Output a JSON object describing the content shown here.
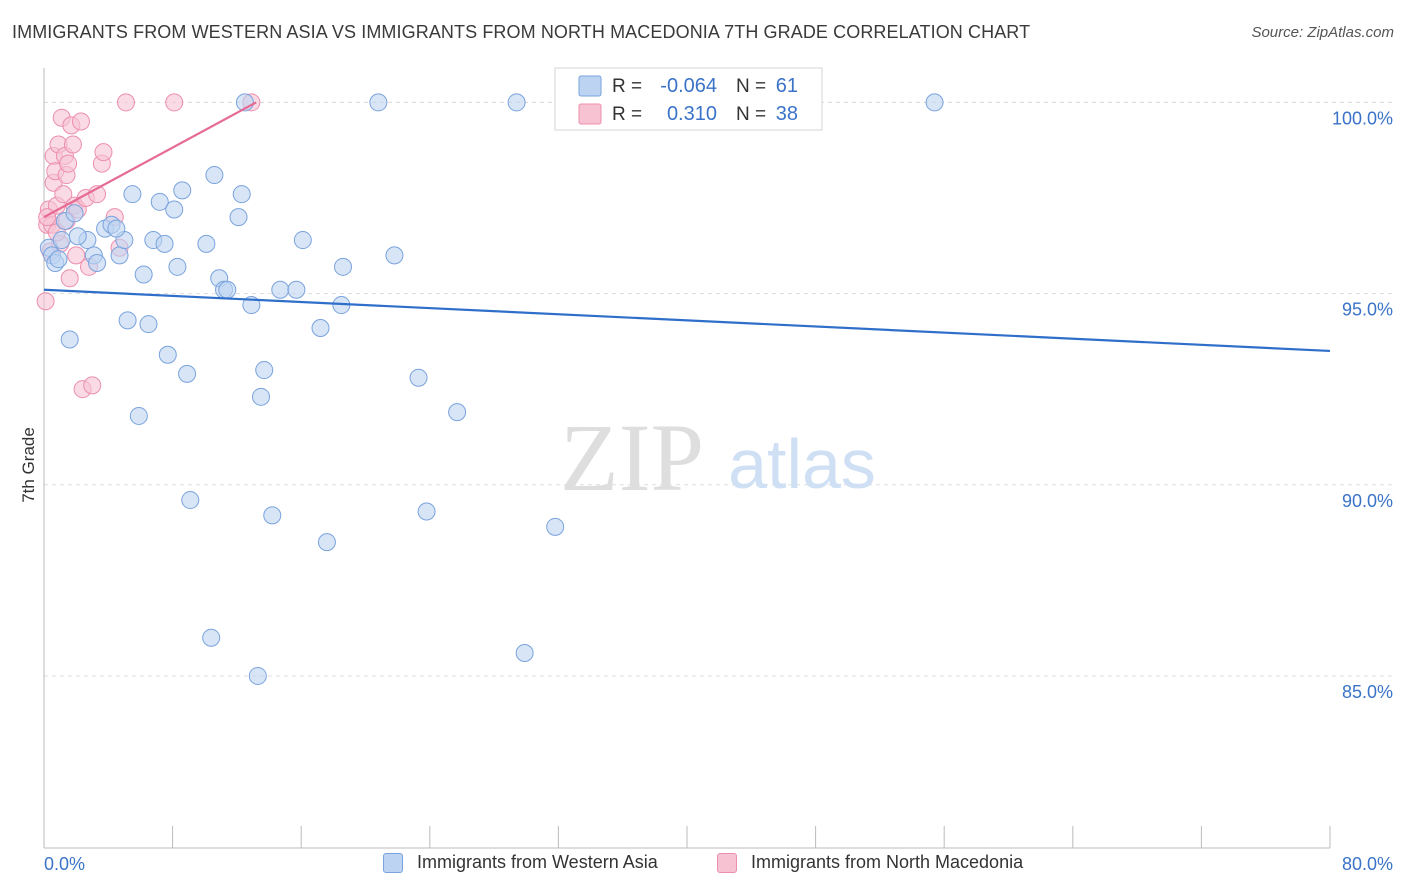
{
  "title": "IMMIGRANTS FROM WESTERN ASIA VS IMMIGRANTS FROM NORTH MACEDONIA 7TH GRADE CORRELATION CHART",
  "source": "Source: ZipAtlas.com",
  "watermark": {
    "zip": "ZIP",
    "atlas": "atlas"
  },
  "colors": {
    "blue_fill": "#bcd3f2",
    "blue_stroke": "#7aa3dd",
    "blue_line": "#2f6fca",
    "pink_fill": "#f7c3d3",
    "pink_stroke": "#ec8fae",
    "pink_line": "#e56b93",
    "axis_label": "#3a73c8",
    "grid": "#dddddd"
  },
  "legend_box": {
    "rows": [
      {
        "r_label": "R =",
        "r_value": "-0.064",
        "n_label": "N =",
        "n_value": "61"
      },
      {
        "r_label": "R =",
        "r_value": "0.310",
        "n_label": "N =",
        "n_value": "38"
      }
    ]
  },
  "chart_data": {
    "type": "scatter",
    "title": "IMMIGRANTS FROM WESTERN ASIA VS IMMIGRANTS FROM NORTH MACEDONIA 7TH GRADE CORRELATION CHART",
    "xlabel": "",
    "ylabel": "7th Grade",
    "xlim": [
      0,
      80
    ],
    "ylim": [
      80.5,
      100.9
    ],
    "x_tick_labels": [
      "0.0%",
      "80.0%"
    ],
    "y_ticks": [
      85,
      90,
      95,
      100
    ],
    "y_tick_labels": [
      "85.0%",
      "90.0%",
      "95.0%",
      "100.0%"
    ],
    "grid": true,
    "legend_position": "bottom",
    "series": [
      {
        "name": "Immigrants from Western Asia",
        "color": "#bcd3f2",
        "trend": {
          "x": [
            0,
            80
          ],
          "y": [
            95.1,
            93.5
          ]
        },
        "points": [
          [
            0.3,
            96.2
          ],
          [
            0.5,
            96.0
          ],
          [
            0.7,
            95.8
          ],
          [
            1.1,
            96.4
          ],
          [
            1.3,
            96.9
          ],
          [
            1.9,
            97.1
          ],
          [
            2.7,
            96.4
          ],
          [
            3.1,
            96.0
          ],
          [
            3.3,
            95.8
          ],
          [
            3.8,
            96.7
          ],
          [
            4.2,
            96.8
          ],
          [
            4.7,
            96.0
          ],
          [
            5.0,
            96.4
          ],
          [
            5.5,
            97.6
          ],
          [
            6.2,
            95.5
          ],
          [
            6.5,
            94.2
          ],
          [
            6.8,
            96.4
          ],
          [
            7.2,
            97.4
          ],
          [
            7.5,
            96.3
          ],
          [
            7.7,
            93.4
          ],
          [
            8.1,
            97.2
          ],
          [
            8.3,
            95.7
          ],
          [
            8.6,
            97.7
          ],
          [
            8.9,
            92.9
          ],
          [
            9.1,
            89.6
          ],
          [
            10.1,
            96.3
          ],
          [
            10.4,
            86.0
          ],
          [
            10.6,
            98.1
          ],
          [
            10.9,
            95.4
          ],
          [
            11.2,
            95.1
          ],
          [
            11.4,
            95.1
          ],
          [
            12.1,
            97.0
          ],
          [
            12.3,
            97.6
          ],
          [
            12.5,
            100.0
          ],
          [
            12.9,
            94.7
          ],
          [
            13.3,
            85.0
          ],
          [
            13.5,
            92.3
          ],
          [
            13.7,
            93.0
          ],
          [
            14.2,
            89.2
          ],
          [
            14.7,
            95.1
          ],
          [
            15.7,
            95.1
          ],
          [
            16.1,
            96.4
          ],
          [
            17.2,
            94.1
          ],
          [
            17.6,
            88.5
          ],
          [
            18.5,
            94.7
          ],
          [
            18.6,
            95.7
          ],
          [
            20.8,
            100.0
          ],
          [
            21.8,
            96.0
          ],
          [
            23.3,
            92.8
          ],
          [
            23.8,
            89.3
          ],
          [
            25.7,
            91.9
          ],
          [
            29.4,
            100.0
          ],
          [
            29.9,
            85.6
          ],
          [
            31.8,
            88.9
          ],
          [
            55.4,
            100.0
          ],
          [
            1.6,
            93.8
          ],
          [
            5.2,
            94.3
          ],
          [
            5.9,
            91.8
          ],
          [
            2.1,
            96.5
          ],
          [
            0.9,
            95.9
          ],
          [
            4.5,
            96.7
          ]
        ]
      },
      {
        "name": "Immigrants from North Macedonia",
        "color": "#f7c3d3",
        "trend": {
          "x": [
            0,
            13.2
          ],
          "y": [
            97.0,
            100.0
          ]
        },
        "points": [
          [
            0.1,
            94.8
          ],
          [
            0.2,
            96.8
          ],
          [
            0.3,
            97.2
          ],
          [
            0.4,
            96.1
          ],
          [
            0.5,
            96.8
          ],
          [
            0.6,
            97.9
          ],
          [
            0.6,
            98.6
          ],
          [
            0.7,
            98.2
          ],
          [
            0.8,
            97.3
          ],
          [
            0.9,
            98.9
          ],
          [
            1.0,
            96.3
          ],
          [
            1.1,
            99.6
          ],
          [
            1.2,
            97.6
          ],
          [
            1.3,
            98.6
          ],
          [
            1.4,
            98.1
          ],
          [
            1.5,
            98.4
          ],
          [
            1.6,
            95.4
          ],
          [
            1.7,
            99.4
          ],
          [
            1.8,
            98.9
          ],
          [
            1.9,
            97.3
          ],
          [
            2.0,
            96.0
          ],
          [
            2.1,
            97.2
          ],
          [
            2.3,
            99.5
          ],
          [
            2.4,
            92.5
          ],
          [
            2.6,
            97.5
          ],
          [
            2.8,
            95.7
          ],
          [
            3.0,
            92.6
          ],
          [
            3.3,
            97.6
          ],
          [
            3.6,
            98.4
          ],
          [
            3.7,
            98.7
          ],
          [
            4.4,
            97.0
          ],
          [
            4.7,
            96.2
          ],
          [
            5.1,
            100.0
          ],
          [
            8.1,
            100.0
          ],
          [
            12.9,
            100.0
          ],
          [
            0.2,
            97.0
          ],
          [
            0.8,
            96.6
          ],
          [
            1.4,
            96.9
          ]
        ]
      }
    ]
  }
}
